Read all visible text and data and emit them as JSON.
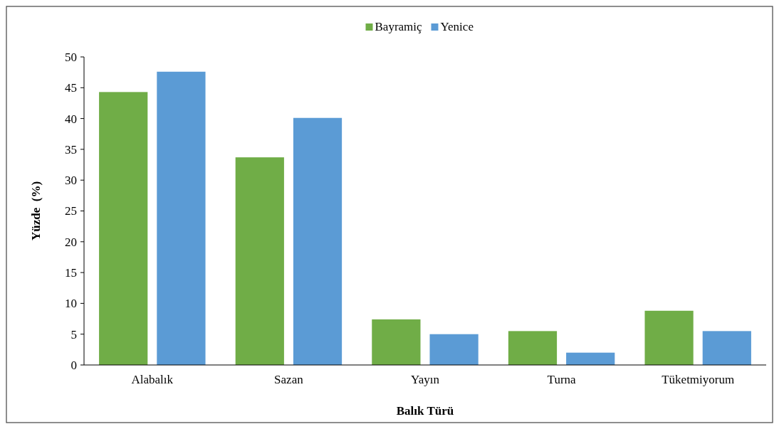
{
  "chart_data": {
    "type": "bar",
    "xlabel": "Balık Türü",
    "ylabel": "Yüzde  (%)",
    "categories": [
      "Alabalık",
      "Sazan",
      "Yayın",
      "Turna",
      "Tüketmiyorum"
    ],
    "series": [
      {
        "name": "Bayramiç",
        "color": "#70ad47",
        "values": [
          44.3,
          33.7,
          7.4,
          5.5,
          8.8
        ]
      },
      {
        "name": "Yenice",
        "color": "#5b9bd5",
        "values": [
          47.6,
          40.1,
          5.0,
          2.0,
          5.5
        ]
      }
    ],
    "ylim": [
      0,
      50
    ],
    "yticks": [
      0,
      5,
      10,
      15,
      20,
      25,
      30,
      35,
      40,
      45,
      50
    ],
    "grid": false,
    "legend": "top"
  }
}
